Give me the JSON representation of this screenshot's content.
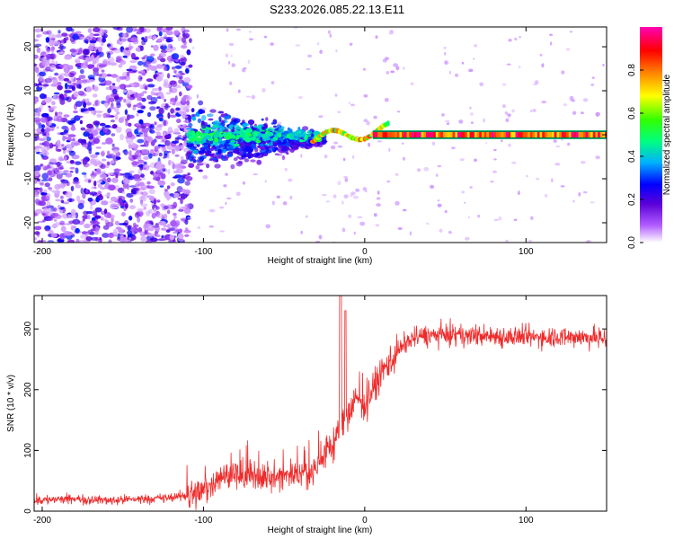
{
  "figure": {
    "title": "S233.2026.085.22.13.E11"
  },
  "chart_data": [
    {
      "type": "heatmap",
      "name": "spectrogram",
      "xlabel": "Height of straight line (km)",
      "ylabel": "Frequency (Hz)",
      "xlim": [
        -205,
        150
      ],
      "ylim": [
        -24.5,
        24.5
      ],
      "xticks": [
        -200,
        -100,
        0,
        100
      ],
      "yticks": [
        -20,
        -10,
        0,
        10,
        20
      ],
      "xtick_labels": [
        "-200",
        "-100",
        "0",
        "100"
      ],
      "ytick_labels": [
        "-20",
        "-10",
        "0",
        "10",
        "20"
      ],
      "carrier_band_hz": [
        -0.8,
        0.8
      ],
      "regions": [
        {
          "from_km": -205,
          "to_km": -110,
          "description": "broadband noise, amplitude ~0.1-0.3"
        },
        {
          "from_km": -110,
          "to_km": -25,
          "description": "spread signal around 0 Hz, amplitude up to ~0.5"
        },
        {
          "from_km": -25,
          "to_km": 150,
          "description": "narrow carrier near 0 Hz, amplitude ~0.8-1.0"
        }
      ],
      "colorbar": {
        "label": "Normalized spectral amplitude",
        "range": [
          0,
          1
        ],
        "ticks": [
          0.0,
          0.2,
          0.4,
          0.6,
          0.8
        ],
        "tick_labels": [
          "0.0",
          "0.2",
          "0.4",
          "0.6",
          "0.8"
        ],
        "colors": [
          "#ffffff",
          "#b15cff",
          "#5a00d9",
          "#0000ff",
          "#00b0ff",
          "#00ff80",
          "#33ff00",
          "#ffff00",
          "#ff8000",
          "#ff0000",
          "#ff00b4"
        ]
      }
    },
    {
      "type": "line",
      "name": "snr",
      "xlabel": "Height of straight line (km)",
      "ylabel": "SNR (10 * v/v)",
      "xlim": [
        -205,
        150
      ],
      "ylim": [
        0,
        355
      ],
      "xticks": [
        -200,
        -100,
        0,
        100
      ],
      "yticks": [
        0,
        100,
        200,
        300
      ],
      "xtick_labels": [
        "-200",
        "-100",
        "0",
        "100"
      ],
      "ytick_labels": [
        "0",
        "100",
        "200",
        "300"
      ],
      "color": "#ee2a2a",
      "series": [
        {
          "name": "SNR",
          "x": [
            -205,
            -180,
            -160,
            -140,
            -120,
            -110,
            -100,
            -90,
            -80,
            -70,
            -60,
            -50,
            -40,
            -30,
            -25,
            -20,
            -15,
            -10,
            -5,
            0,
            5,
            10,
            15,
            20,
            25,
            30,
            40,
            50,
            60,
            80,
            100,
            120,
            150
          ],
          "y": [
            18,
            20,
            18,
            20,
            22,
            26,
            35,
            55,
            60,
            55,
            55,
            58,
            60,
            70,
            95,
            110,
            130,
            165,
            185,
            180,
            200,
            225,
            245,
            262,
            275,
            285,
            290,
            290,
            290,
            288,
            286,
            288,
            285
          ],
          "spike": {
            "x": -15,
            "y": 355
          }
        }
      ]
    }
  ]
}
